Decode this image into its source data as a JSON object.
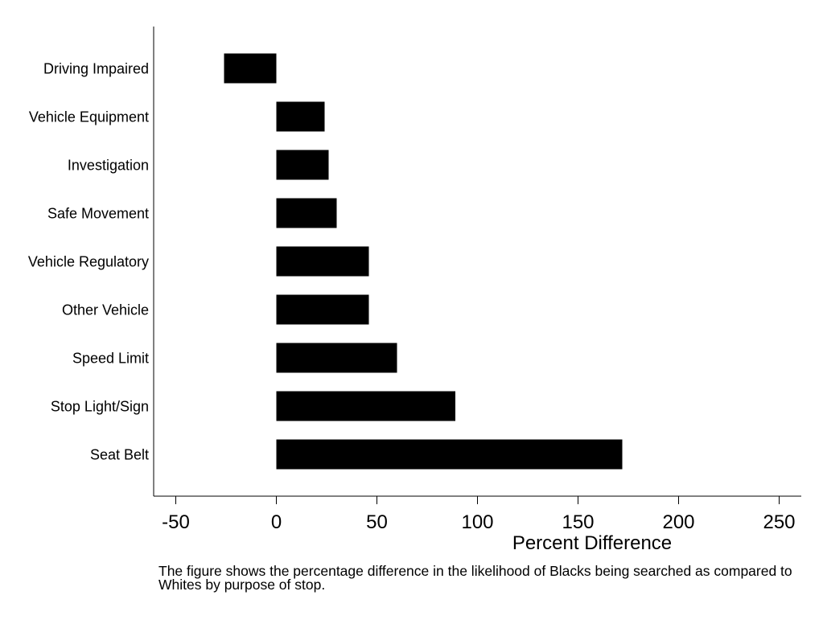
{
  "chart_data": {
    "type": "bar",
    "orientation": "horizontal",
    "categories": [
      "Driving Impaired",
      "Vehicle Equipment",
      "Investigation",
      "Safe Movement",
      "Vehicle Regulatory",
      "Other Vehicle",
      "Speed Limit",
      "Stop Light/Sign",
      "Seat Belt"
    ],
    "values": [
      -26,
      24,
      26,
      30,
      46,
      46,
      60,
      89,
      172
    ],
    "xlabel": "Percent Difference",
    "xlim": [
      -60,
      260
    ],
    "xticks": [
      -50,
      0,
      50,
      100,
      150,
      200,
      250
    ],
    "bar_color": "#000000",
    "grid": false,
    "legend": "none"
  },
  "note": "The figure shows the percentage difference in the likelihood of Blacks being searched as compared to Whites by purpose of stop."
}
